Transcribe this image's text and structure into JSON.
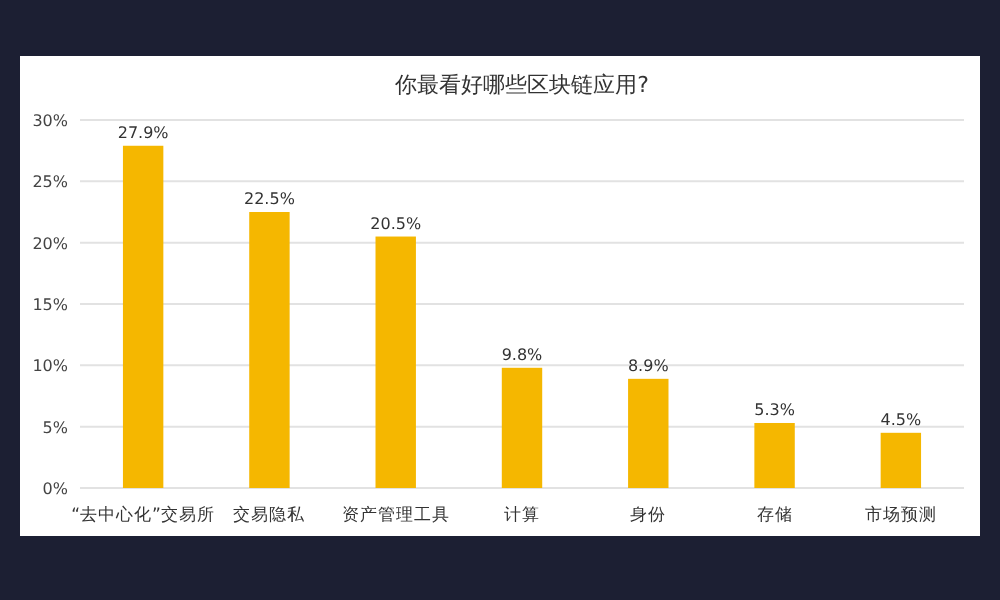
{
  "chart_data": {
    "type": "bar",
    "title": "你最看好哪些区块链应用?",
    "categories": [
      "“去中心化”交易所",
      "交易隐私",
      "资产管理工具",
      "计算",
      "身份",
      "存储",
      "市场预测"
    ],
    "values": [
      27.9,
      22.5,
      20.5,
      9.8,
      8.9,
      5.3,
      4.5
    ],
    "value_labels": [
      "27.9%",
      "22.5%",
      "20.5%",
      "9.8%",
      "8.9%",
      "5.3%",
      "4.5%"
    ],
    "color": "#f5b700",
    "ylim": [
      0,
      30
    ],
    "yticks": [
      {
        "value": 0,
        "label": "0%"
      },
      {
        "value": 5,
        "label": "5%"
      },
      {
        "value": 10,
        "label": "10%"
      },
      {
        "value": 15,
        "label": "15%"
      },
      {
        "value": 20,
        "label": "20%"
      },
      {
        "value": 25,
        "label": "25%"
      },
      {
        "value": 30,
        "label": "30%"
      }
    ],
    "grid": "y"
  }
}
